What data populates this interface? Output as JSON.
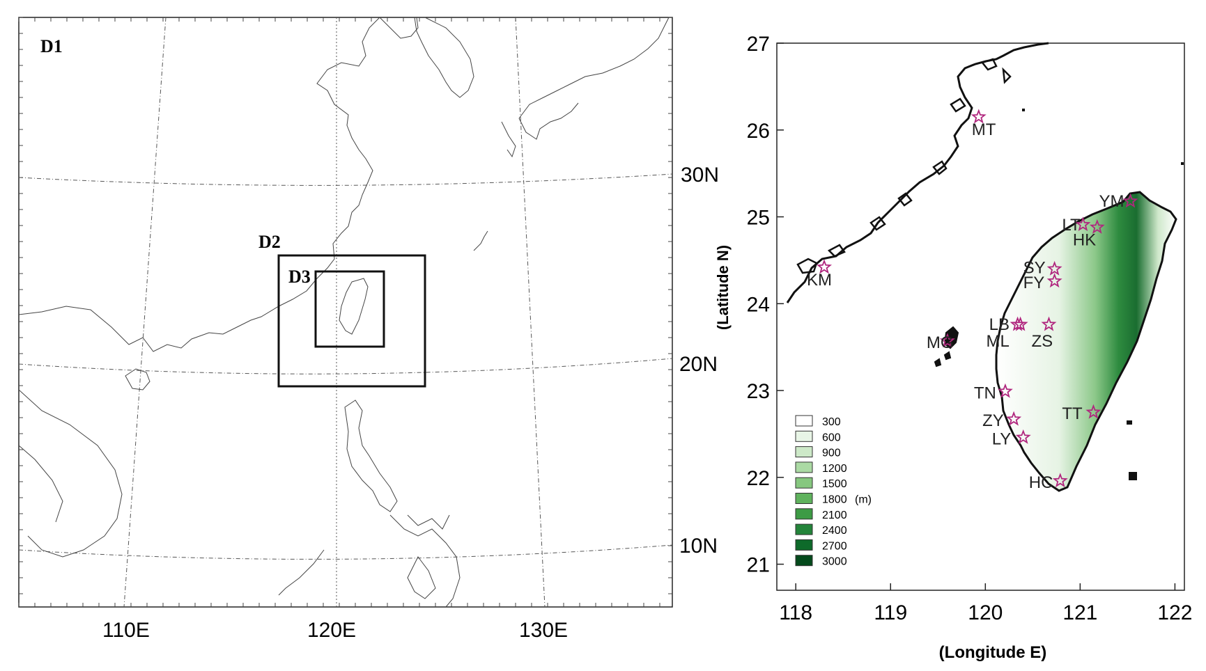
{
  "left_map": {
    "domains": [
      {
        "label": "D1"
      },
      {
        "label": "D2"
      },
      {
        "label": "D3"
      }
    ],
    "lat_labels": [
      "30N",
      "20N",
      "10N"
    ],
    "lon_labels": [
      "110E",
      "120E",
      "130E"
    ]
  },
  "right_map": {
    "ylabel": "(Latitude N)",
    "xlabel": "(Longitude E)",
    "xlim": [
      117.8,
      122.1
    ],
    "ylim": [
      20.7,
      27.0
    ],
    "x_ticks": [
      118,
      119,
      120,
      121,
      122
    ],
    "y_ticks": [
      21,
      22,
      23,
      24,
      25,
      26,
      27
    ],
    "legend": {
      "unit": "(m)",
      "entries": [
        {
          "label": "300",
          "color": "#ffffff"
        },
        {
          "label": "600",
          "color": "#e8f5e6"
        },
        {
          "label": "900",
          "color": "#cde9c8"
        },
        {
          "label": "1200",
          "color": "#abdaa4"
        },
        {
          "label": "1500",
          "color": "#86c77f"
        },
        {
          "label": "1800",
          "color": "#5fb25d"
        },
        {
          "label": "2100",
          "color": "#3d9b45"
        },
        {
          "label": "2400",
          "color": "#23843a"
        },
        {
          "label": "2700",
          "color": "#0e6a2a"
        },
        {
          "label": "3000",
          "color": "#044a1c"
        }
      ]
    },
    "stations": [
      {
        "code": "MT",
        "lon": 119.93,
        "lat": 26.15
      },
      {
        "code": "KM",
        "lon": 118.3,
        "lat": 24.42
      },
      {
        "code": "MG",
        "lon": 119.6,
        "lat": 23.57
      },
      {
        "code": "YM",
        "lon": 121.53,
        "lat": 25.18
      },
      {
        "code": "LT",
        "lon": 121.03,
        "lat": 24.91
      },
      {
        "code": "HK",
        "lon": 121.18,
        "lat": 24.88
      },
      {
        "code": "SY",
        "lon": 120.73,
        "lat": 24.4
      },
      {
        "code": "FY",
        "lon": 120.73,
        "lat": 24.26
      },
      {
        "code": "LB",
        "lon": 120.37,
        "lat": 23.76
      },
      {
        "code": "ML",
        "lon": 120.34,
        "lat": 23.76
      },
      {
        "code": "ZS",
        "lon": 120.67,
        "lat": 23.76
      },
      {
        "code": "TN",
        "lon": 120.21,
        "lat": 22.99
      },
      {
        "code": "ZY",
        "lon": 120.3,
        "lat": 22.67
      },
      {
        "code": "LY",
        "lon": 120.4,
        "lat": 22.46
      },
      {
        "code": "TT",
        "lon": 121.14,
        "lat": 22.75
      },
      {
        "code": "HC",
        "lon": 120.79,
        "lat": 21.96
      }
    ],
    "marker_color": "#b0267e"
  }
}
